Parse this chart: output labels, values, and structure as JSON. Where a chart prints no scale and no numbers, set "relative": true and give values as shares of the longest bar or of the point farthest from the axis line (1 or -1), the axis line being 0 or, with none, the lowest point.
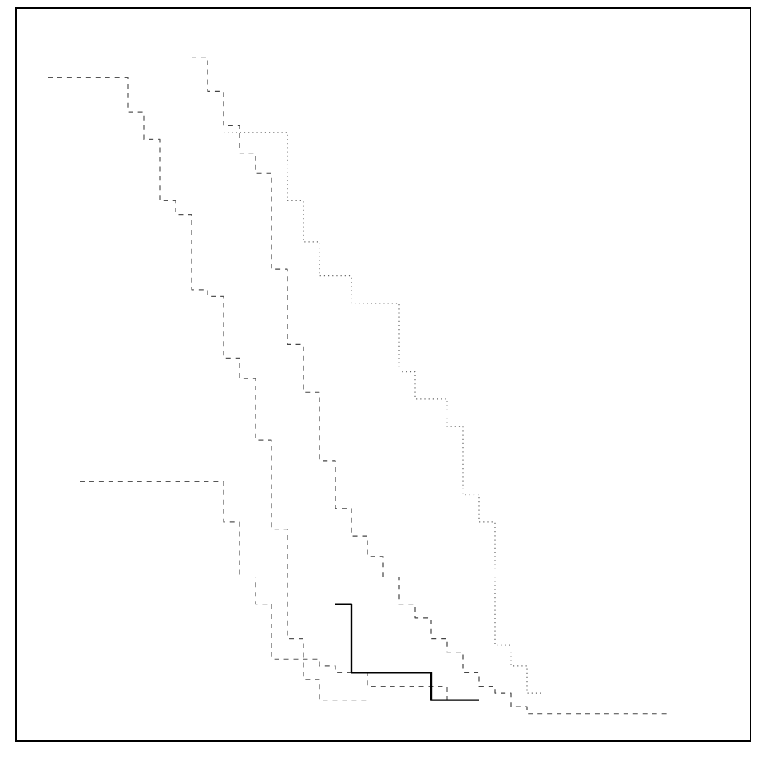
{
  "chart_data": {
    "type": "step",
    "relative": true,
    "categories": [
      null,
      null,
      null,
      null,
      null,
      null,
      null,
      null,
      null,
      null,
      null,
      null,
      null,
      null,
      null,
      null,
      null,
      null,
      null,
      null,
      null,
      null,
      null,
      null,
      null,
      null,
      null,
      null,
      null,
      null,
      null,
      null,
      null,
      null,
      null,
      null,
      null,
      null,
      null,
      null,
      null
    ],
    "series": [
      {
        "color": "#555555",
        "line_style": "dashed",
        "values": [
          0.97,
          0.97,
          0.97,
          0.97,
          0.97,
          0.92,
          0.88,
          0.79,
          0.77,
          0.66,
          0.65,
          0.56,
          0.53,
          0.44,
          0.31,
          0.15,
          0.09,
          0.06,
          0.06,
          0.06,
          0.06,
          null,
          null,
          null,
          null,
          null,
          null,
          null,
          null,
          null,
          null,
          null,
          null,
          null,
          null,
          null,
          null,
          null,
          null,
          null,
          null
        ]
      },
      {
        "color": "#555555",
        "line_style": "dashed",
        "values": [
          null,
          null,
          0.38,
          0.38,
          0.38,
          0.38,
          0.38,
          0.38,
          0.38,
          0.38,
          0.38,
          0.32,
          0.24,
          0.2,
          0.12,
          0.12,
          0.12,
          0.11,
          0.1,
          0.1,
          0.08,
          0.08,
          0.08,
          0.08,
          0.08,
          0.06,
          null,
          null,
          null,
          null,
          null,
          null,
          null,
          null,
          null,
          null,
          null,
          null,
          null,
          null,
          null
        ]
      },
      {
        "color": "#444444",
        "line_style": "dashed",
        "values": [
          null,
          null,
          null,
          null,
          null,
          null,
          null,
          null,
          null,
          1.0,
          0.95,
          0.9,
          0.86,
          0.83,
          0.69,
          0.58,
          0.51,
          0.41,
          0.34,
          0.3,
          0.27,
          0.24,
          0.2,
          0.18,
          0.15,
          0.13,
          0.1,
          0.08,
          0.07,
          0.05,
          0.04,
          0.04,
          0.04,
          0.04,
          0.04,
          0.04,
          0.04,
          0.04,
          0.04,
          0.04,
          null
        ]
      },
      {
        "color": "#666666",
        "line_style": "dotted",
        "values": [
          null,
          null,
          null,
          null,
          null,
          null,
          null,
          null,
          null,
          null,
          null,
          0.89,
          0.89,
          0.89,
          0.89,
          0.79,
          0.73,
          0.68,
          0.68,
          0.64,
          0.64,
          0.64,
          0.54,
          0.5,
          0.5,
          0.46,
          0.36,
          0.32,
          0.14,
          0.11,
          0.07,
          0.07,
          null,
          null,
          null,
          null,
          null,
          null,
          null,
          null,
          null
        ]
      },
      {
        "color": "#000000",
        "line_style": "solid",
        "values": [
          null,
          null,
          null,
          null,
          null,
          null,
          null,
          null,
          null,
          null,
          null,
          null,
          null,
          null,
          null,
          null,
          null,
          null,
          0.2,
          0.1,
          0.1,
          0.1,
          0.1,
          0.1,
          0.06,
          0.06,
          0.06,
          0.06,
          null,
          null,
          null,
          null,
          null,
          null,
          null,
          null,
          null,
          null,
          null,
          null,
          null
        ]
      }
    ]
  }
}
